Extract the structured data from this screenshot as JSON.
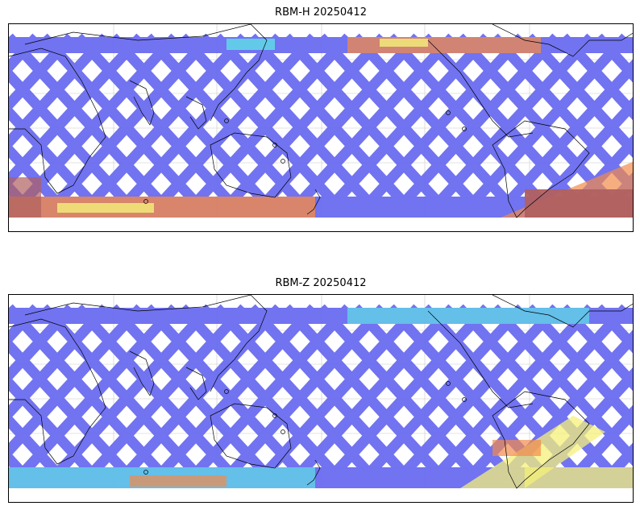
{
  "panels": [
    {
      "title": "RBM-H 20250412",
      "id": "top"
    },
    {
      "title": "RBM-Z 20250412",
      "id": "bottom"
    }
  ],
  "colors": {
    "swath_low": "#6a6cf0",
    "swath_mid": "#5fe0e6",
    "swath_high": "#f28a4a",
    "swath_peak": "#b06060",
    "yellow": "#f4f07a",
    "coast": "#000000",
    "grid": "#c8c8c8"
  }
}
